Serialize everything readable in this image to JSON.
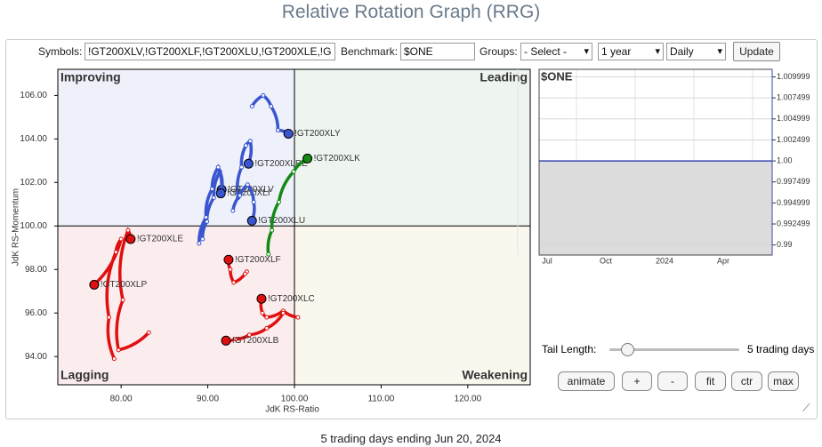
{
  "page_title": "Relative Rotation Graph (RRG)",
  "controls": {
    "symbols_label": "Symbols:",
    "symbols_value": "!GT200XLV,!GT200XLF,!GT200XLU,!GT200XLE,!G",
    "benchmark_label": "Benchmark:",
    "benchmark_value": "$ONE",
    "groups_label": "Groups:",
    "groups_value": "- Select -",
    "period_value": "1 year",
    "frequency_value": "Daily",
    "update_button": "Update"
  },
  "chart_data": [
    {
      "type": "rrg",
      "x_label": "JdK RS-Ratio",
      "y_label": "JdK RS-Momentum",
      "quadrants": {
        "improving": "Improving",
        "leading": "Leading",
        "lagging": "Lagging",
        "weakening": "Weakening"
      },
      "quadrant_split": 100,
      "xlim": [
        72.7,
        127.2
      ],
      "ylim": [
        92.7,
        107.2
      ],
      "xticks": [
        {
          "value": 80,
          "label": "80.00"
        },
        {
          "value": 90,
          "label": "90.00"
        },
        {
          "value": 100,
          "label": "100.00"
        },
        {
          "value": 110,
          "label": "110.00"
        },
        {
          "value": 120,
          "label": "120.00"
        }
      ],
      "yticks": [
        {
          "value": 94,
          "label": "94.00"
        },
        {
          "value": 96,
          "label": "96.00"
        },
        {
          "value": 98,
          "label": "98.00"
        },
        {
          "value": 100,
          "label": "100.00"
        },
        {
          "value": 102,
          "label": "102.00"
        },
        {
          "value": 104,
          "label": "104.00"
        },
        {
          "value": 106,
          "label": "106.00"
        }
      ],
      "series": [
        {
          "name": "!GT200XLY",
          "color": "#3a55d0",
          "x": [
            95.1,
            96.4,
            97.3,
            98.1,
            99.3
          ],
          "y": [
            105.5,
            106.0,
            105.5,
            104.4,
            104.24
          ]
        },
        {
          "name": "!GT200XLRE",
          "color": "#3a55d0",
          "x": [
            93.5,
            93.9,
            94.4,
            94.9,
            94.7
          ],
          "y": [
            101.3,
            102.7,
            103.7,
            103.9,
            102.86
          ]
        },
        {
          "name": "!GT200XLV",
          "color": "#3a55d0",
          "x": [
            89.4,
            89.9,
            90.7,
            91.4,
            91.6
          ],
          "y": [
            99.4,
            100.2,
            101.3,
            102.5,
            101.67
          ]
        },
        {
          "name": "!GT200XLI",
          "color": "#3a55d0",
          "x": [
            89.0,
            89.8,
            90.5,
            91.2,
            91.5
          ],
          "y": [
            99.2,
            100.4,
            101.7,
            102.7,
            101.5
          ]
        },
        {
          "name": "!GT200XLU",
          "color": "#3a55d0",
          "x": [
            92.9,
            93.7,
            94.6,
            95.3,
            95.1
          ],
          "y": [
            100.7,
            101.4,
            101.9,
            101.1,
            100.24
          ]
        },
        {
          "name": "!GT200XLK",
          "color": "#138a13",
          "x": [
            97.0,
            97.4,
            98.2,
            99.9,
            101.5
          ],
          "y": [
            98.7,
            99.8,
            101.1,
            102.5,
            103.1
          ]
        },
        {
          "name": "!GT200XLE",
          "color": "#e01010",
          "x": [
            83.2,
            79.7,
            80.2,
            80.8,
            81.1
          ],
          "y": [
            95.1,
            94.3,
            96.6,
            99.8,
            99.4
          ]
        },
        {
          "name": "!GT200XLP",
          "color": "#e01010",
          "x": [
            79.2,
            78.6,
            79.4,
            80.0,
            76.9
          ],
          "y": [
            93.9,
            95.8,
            98.8,
            99.4,
            97.3
          ]
        },
        {
          "name": "!GT200XLF",
          "color": "#e01010",
          "x": [
            94.5,
            94.3,
            93.0,
            92.6,
            92.4
          ],
          "y": [
            97.9,
            97.8,
            97.4,
            98.0,
            98.45
          ]
        },
        {
          "name": "!GT200XLC",
          "color": "#e01010",
          "x": [
            100.4,
            98.7,
            96.8,
            96.3,
            96.2
          ],
          "y": [
            95.8,
            96.1,
            95.8,
            96.0,
            96.65
          ]
        },
        {
          "name": "!GT200XLB",
          "color": "#e01010",
          "x": [
            98.7,
            96.8,
            94.8,
            93.2,
            92.1
          ],
          "y": [
            96.0,
            95.3,
            95.0,
            94.8,
            94.73
          ]
        }
      ]
    },
    {
      "type": "line",
      "categories": [
        "Jul",
        "Oct",
        "2024",
        "Apr"
      ],
      "ylim": [
        0.9888,
        1.0109
      ],
      "yticks": [
        1.009999,
        1.007499,
        1.004999,
        1.002499,
        {
          "value": 1,
          "label": "1.00"
        },
        0.997499,
        0.994999,
        0.992499,
        0.99
      ],
      "grid": true,
      "series": [
        {
          "name": "$ONE",
          "color": "#3a46b8",
          "values": [
            1,
            1,
            1,
            1
          ]
        }
      ]
    }
  ],
  "tail": {
    "label": "Tail Length:",
    "value_text": "5 trading days"
  },
  "buttons": [
    "animate",
    "+",
    "-",
    "fit",
    "ctr",
    "max"
  ],
  "footer": "5 trading days ending Jun 20, 2024"
}
